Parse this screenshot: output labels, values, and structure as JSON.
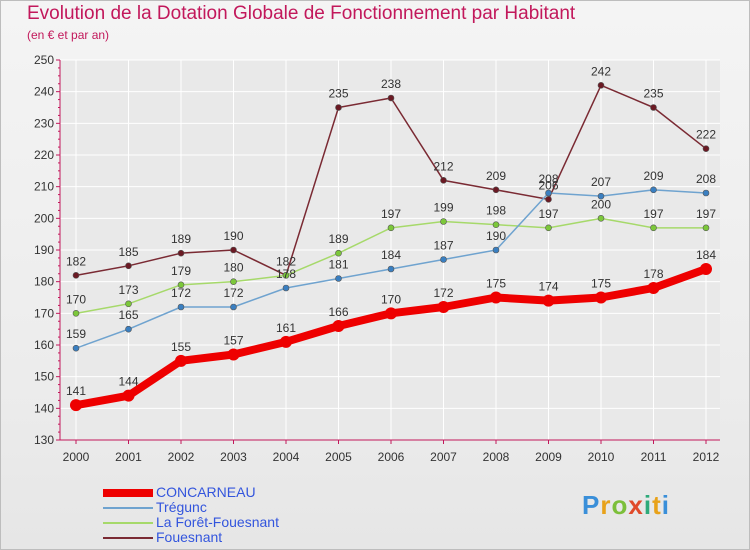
{
  "title": "Evolution de la Dotation Globale de Fonctionnement par Habitant",
  "subtitle": "(en € et par an)",
  "logo_text": "Proxiti",
  "colors": {
    "title": "#c2185b",
    "legend_text": "#3355dd",
    "grid": "#ffffff"
  },
  "chart_data": {
    "type": "line",
    "title": "Evolution de la Dotation Globale de Fonctionnement par Habitant",
    "subtitle": "(en € et par an)",
    "x": [
      2000,
      2001,
      2002,
      2003,
      2004,
      2005,
      2006,
      2007,
      2008,
      2009,
      2010,
      2011,
      2012
    ],
    "ylim": [
      130,
      250
    ],
    "yticks": [
      130,
      140,
      150,
      160,
      170,
      180,
      190,
      200,
      210,
      220,
      230,
      240,
      250
    ],
    "grid": true,
    "legend_position": "bottom-left",
    "series": [
      {
        "name": "CONCARNEAU",
        "color": "#ee0000",
        "marker_color": "#ee0000",
        "width": 8,
        "values": [
          141,
          144,
          155,
          157,
          161,
          166,
          170,
          172,
          175,
          174,
          175,
          178,
          184
        ]
      },
      {
        "name": "Trégunc",
        "color": "#6fa3cf",
        "marker_color": "#3a7fc1",
        "width": 1.5,
        "values": [
          159,
          165,
          172,
          172,
          178,
          181,
          184,
          187,
          190,
          208,
          207,
          209,
          208
        ]
      },
      {
        "name": "La Forêt-Fouesnant",
        "color": "#a6d96a",
        "marker_color": "#7cc83a",
        "width": 1.5,
        "values": [
          170,
          173,
          179,
          180,
          182,
          189,
          197,
          199,
          198,
          197,
          200,
          197,
          197
        ]
      },
      {
        "name": "Fouesnant",
        "color": "#7a2a33",
        "marker_color": "#6b1a24",
        "width": 1.5,
        "values": [
          182,
          185,
          189,
          190,
          182,
          235,
          238,
          212,
          209,
          206,
          242,
          235,
          222
        ]
      }
    ],
    "point_labels": {
      "CONCARNEAU": [
        "141",
        "144",
        "155",
        "157",
        "161",
        "166",
        "170",
        "172",
        "175",
        "174",
        "175",
        "178",
        "184"
      ],
      "Trégunc": [
        "159",
        "165",
        "172",
        "172",
        "178",
        "181",
        "184",
        "187",
        "190",
        "208",
        "207",
        "209",
        "208"
      ],
      "La Forêt-Fouesnant": [
        "170",
        "173",
        "179",
        "180",
        "",
        "189",
        "197",
        "199",
        "198",
        "197",
        "200",
        "197",
        "197"
      ],
      "Fouesnant": [
        "182",
        "185",
        "189",
        "190",
        "182",
        "235",
        "238",
        "212",
        "209",
        "206",
        "242",
        "235",
        "222"
      ]
    }
  }
}
